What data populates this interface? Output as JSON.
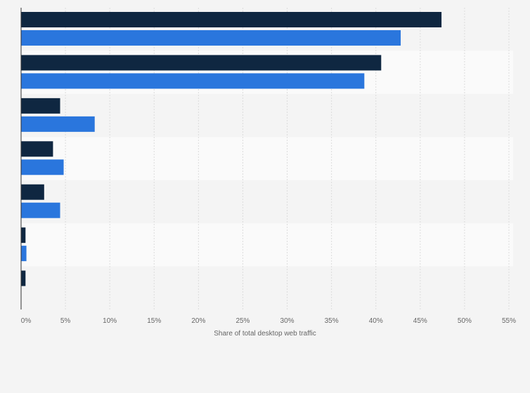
{
  "chart_data": {
    "type": "bar",
    "orientation": "horizontal",
    "title": "",
    "xlabel": "Share of total desktop web traffic",
    "ylabel": "",
    "xlim": [
      0,
      55
    ],
    "x_ticks": [
      "0%",
      "5%",
      "10%",
      "15%",
      "20%",
      "25%",
      "30%",
      "35%",
      "40%",
      "45%",
      "50%",
      "55%"
    ],
    "grid": true,
    "legend": "none",
    "categories": [
      "",
      "",
      "",
      "",
      "",
      "",
      ""
    ],
    "series": [
      {
        "color": "#0f2741",
        "values": [
          47.4,
          40.6,
          4.4,
          3.6,
          2.6,
          0.5,
          0.5
        ]
      },
      {
        "color": "#2a76dd",
        "values": [
          42.8,
          38.7,
          8.3,
          4.8,
          4.4,
          0.6,
          null
        ]
      }
    ]
  }
}
